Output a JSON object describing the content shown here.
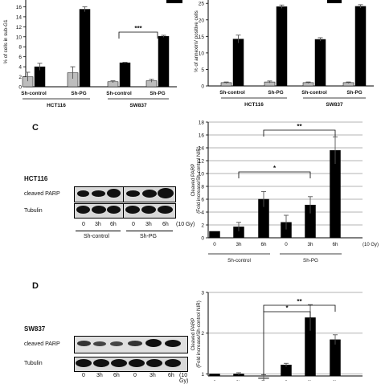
{
  "panel_letters": {
    "c": "C",
    "d": "D"
  },
  "colors": {
    "bar_black": "#000000",
    "bar_grey": "#bdbdbd",
    "axis": "#000000",
    "grid": "#9a9a9a"
  },
  "chart_data": [
    {
      "id": "top-left",
      "type": "bar",
      "title": "",
      "xlabel": "",
      "ylabel": "% of cells in sub-G1",
      "ylim": [
        0,
        18
      ],
      "yticks": [
        0,
        2,
        4,
        6,
        8,
        10,
        12,
        14,
        16
      ],
      "tick_labels_y": [
        "0",
        "2",
        "4",
        "6",
        "8",
        "10",
        "12",
        "14",
        "16"
      ],
      "categories": [
        "Sh-control",
        "Sh-PG",
        "Sh-control",
        "Sh-PG"
      ],
      "groups": [
        "HCT116",
        "SW837"
      ],
      "series": [
        {
          "values": [
            2.0,
            2.8,
            1.0,
            1.2
          ],
          "errors": [
            0.9,
            1.2,
            0.2,
            0.3
          ],
          "color": "#bdbdbd"
        },
        {
          "values": [
            4.0,
            15.5,
            4.8,
            10.1
          ],
          "errors": [
            0.7,
            0.5,
            0.1,
            0.2
          ],
          "color": "#000000"
        }
      ],
      "annotations": [
        {
          "text": "***",
          "pair": [
            2,
            3
          ]
        }
      ],
      "grid": false
    },
    {
      "id": "top-right",
      "type": "bar",
      "title": "",
      "xlabel": "",
      "ylabel": "% of annexinV positive cells",
      "ylim": [
        0,
        27
      ],
      "yticks": [
        0,
        5,
        10,
        15,
        20,
        25
      ],
      "tick_labels_y": [
        "0",
        "5",
        "10",
        "15",
        "20",
        "25"
      ],
      "categories": [
        "Sh-control",
        "Sh-PG",
        "Sh-control",
        "Sh-PG"
      ],
      "groups": [
        "HCT116",
        "SW837"
      ],
      "series": [
        {
          "values": [
            1.0,
            1.2,
            1.0,
            1.0
          ],
          "errors": [
            0.2,
            0.3,
            0.2,
            0.2
          ],
          "color": "#bdbdbd"
        },
        {
          "values": [
            14.2,
            24.0,
            14.1,
            24.1
          ],
          "errors": [
            1.2,
            0.5,
            0.5,
            0.5
          ],
          "color": "#000000"
        }
      ],
      "grid": false
    },
    {
      "id": "panel-c",
      "type": "bar",
      "title": "",
      "xlabel": "",
      "ylabel": "Cleaved PARP\n(Fold increase/Sh-control NIR)",
      "ylim": [
        0,
        18
      ],
      "yticks": [
        0,
        2,
        4,
        6,
        8,
        10,
        12,
        14,
        16,
        18
      ],
      "tick_labels_y": [
        "0",
        "2",
        "4",
        "6",
        "8",
        "10",
        "12",
        "14",
        "16",
        "18"
      ],
      "categories": [
        "0",
        "3h",
        "6h",
        "0",
        "3h",
        "6h"
      ],
      "dose_label": "(10 Gy)",
      "groups": [
        "Sh-control",
        "Sh-PG"
      ],
      "series": [
        {
          "values": [
            1.0,
            1.7,
            6.0,
            2.4,
            5.1,
            13.6
          ],
          "errors": [
            0.0,
            0.7,
            1.2,
            1.1,
            1.3,
            2.1
          ],
          "color": "#000000"
        }
      ],
      "annotations": [
        {
          "text": "**",
          "pair": [
            2,
            5
          ]
        },
        {
          "text": "*",
          "pair": [
            1,
            4
          ]
        }
      ],
      "grid": true
    },
    {
      "id": "panel-d",
      "type": "bar",
      "title": "",
      "xlabel": "",
      "ylabel": "Cleaved PARP\n(Fold increase/Sh-control NIR)",
      "ylim": [
        0.95,
        3
      ],
      "yticks": [
        1,
        2,
        3
      ],
      "tick_labels_y": [
        "1",
        "2",
        "3"
      ],
      "categories": [
        "0",
        "3h",
        "6h",
        "0",
        "3h",
        "6h"
      ],
      "series": [
        {
          "values": [
            1.0,
            1.0,
            0.9,
            1.22,
            2.38,
            1.84
          ],
          "errors": [
            0.0,
            0.03,
            0.08,
            0.04,
            0.32,
            0.12
          ],
          "color": "#000000"
        }
      ],
      "annotations": [
        {
          "text": "*",
          "pair": [
            2,
            4
          ]
        },
        {
          "text": "**",
          "pair": [
            2,
            5
          ]
        }
      ],
      "grid": true
    }
  ],
  "blots": {
    "c": {
      "cell_line": "HCT116",
      "rows": [
        "cleaved PARP",
        "Tubulin"
      ],
      "lanes": [
        "0",
        "3h",
        "6h",
        "0",
        "3h",
        "6h"
      ],
      "dose": "(10 Gy)",
      "groups": [
        "Sh-control",
        "Sh-PG"
      ]
    },
    "d": {
      "cell_line": "SW837",
      "rows": [
        "cleaved PARP",
        "Tubulin"
      ],
      "lanes": [
        "0",
        "3h",
        "6h",
        "0",
        "3h",
        "6h"
      ],
      "dose": "(10 Gy)"
    }
  }
}
